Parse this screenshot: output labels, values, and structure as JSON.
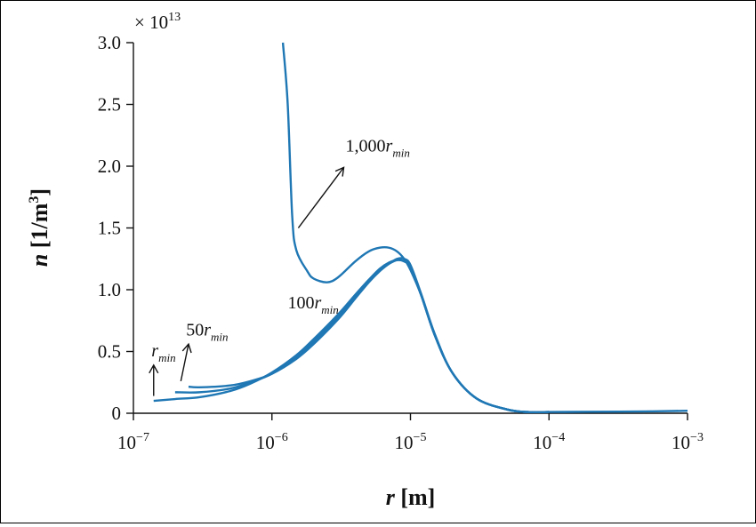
{
  "chart_data": {
    "type": "line",
    "title": "",
    "x_scale": "log",
    "xlim": [
      1e-07,
      0.001
    ],
    "ylim": [
      0,
      30000000000000.0
    ],
    "y_multiplier_label": "× 10",
    "y_multiplier_exp": "13",
    "x_ticks": [
      {
        "value": 1e-07,
        "base": "10",
        "exp": "−7"
      },
      {
        "value": 1e-06,
        "base": "10",
        "exp": "−6"
      },
      {
        "value": 1e-05,
        "base": "10",
        "exp": "−5"
      },
      {
        "value": 0.0001,
        "base": "10",
        "exp": "−4"
      },
      {
        "value": 0.001,
        "base": "10",
        "exp": "−3"
      }
    ],
    "y_ticks": [
      {
        "value": 0,
        "label": "0"
      },
      {
        "value": 5000000000000.0,
        "label": "0.5"
      },
      {
        "value": 10000000000000.0,
        "label": "1.0"
      },
      {
        "value": 15000000000000.0,
        "label": "1.5"
      },
      {
        "value": 20000000000000.0,
        "label": "2.0"
      },
      {
        "value": 25000000000000.0,
        "label": "2.5"
      },
      {
        "value": 30000000000000.0,
        "label": "3.0"
      }
    ],
    "xlabel": {
      "var": "r",
      "unit": " [m]"
    },
    "ylabel": {
      "var": "n",
      "unit_open": " [1/m",
      "unit_sup": "3",
      "unit_close": "]"
    },
    "line_color": "#1f77b4",
    "series": [
      {
        "x": [
          1.4e-07,
          2e-07,
          3e-07,
          5e-07,
          7e-07,
          1e-06,
          1.5e-06,
          2e-06,
          3e-06,
          4e-06,
          5e-06,
          6e-06,
          7e-06,
          8e-06,
          9e-06,
          1e-05,
          1.2e-05,
          1.5e-05,
          2e-05,
          3e-05,
          5e-05,
          7e-05,
          0.0001,
          0.0002,
          0.0005,
          0.001
        ],
        "y": [
          1000000000000.0,
          1150000000000.0,
          1300000000000.0,
          1800000000000.0,
          2400000000000.0,
          3300000000000.0,
          4700000000000.0,
          6000000000000.0,
          8000000000000.0,
          9600000000000.0,
          10800000000000.0,
          11700000000000.0,
          12200000000000.0,
          12400000000000.0,
          12300000000000.0,
          11800000000000.0,
          9500000000000.0,
          6300000000000.0,
          3300000000000.0,
          1200000000000.0,
          300000000000.0,
          100000000000.0,
          100000000000.0,
          120000000000.0,
          150000000000.0,
          200000000000.0
        ]
      },
      {
        "x": [
          2e-07,
          3e-07,
          5e-07,
          7e-07,
          1e-06,
          1.5e-06,
          2e-06,
          3e-06,
          4e-06,
          5e-06,
          6e-06,
          7e-06,
          8e-06,
          9e-06,
          1e-05,
          1.2e-05,
          1.5e-05,
          2e-05,
          3e-05,
          5e-05,
          7e-05,
          0.0001
        ],
        "y": [
          1700000000000.0,
          1700000000000.0,
          2000000000000.0,
          2500000000000.0,
          3200000000000.0,
          4500000000000.0,
          5800000000000.0,
          7800000000000.0,
          9500000000000.0,
          10700000000000.0,
          11600000000000.0,
          12100000000000.0,
          12400000000000.0,
          12300000000000.0,
          11800000000000.0,
          9500000000000.0,
          6300000000000.0,
          3300000000000.0,
          1200000000000.0,
          300000000000.0,
          100000000000.0,
          100000000000.0
        ]
      },
      {
        "x": [
          2.5e-07,
          3e-07,
          5e-07,
          7e-07,
          1e-06,
          1.5e-06,
          2e-06,
          3e-06,
          4e-06,
          5e-06,
          6e-06,
          7e-06,
          8e-06,
          9e-06,
          1e-05,
          1.2e-05,
          1.5e-05,
          2e-05,
          3e-05,
          5e-05,
          7e-05,
          0.0001
        ],
        "y": [
          2150000000000.0,
          2100000000000.0,
          2250000000000.0,
          2600000000000.0,
          3200000000000.0,
          4400000000000.0,
          5600000000000.0,
          7600000000000.0,
          9300000000000.0,
          10600000000000.0,
          11500000000000.0,
          12100000000000.0,
          12500000000000.0,
          12500000000000.0,
          12000000000000.0,
          9600000000000.0,
          6400000000000.0,
          3300000000000.0,
          1200000000000.0,
          300000000000.0,
          100000000000.0,
          100000000000.0
        ]
      },
      {
        "x": [
          1.2e-06,
          1.3e-06,
          1.4e-06,
          1.5e-06,
          1.8e-06,
          2e-06,
          2.5e-06,
          3e-06,
          4e-06,
          5e-06,
          6e-06,
          7e-06,
          8e-06,
          9e-06,
          1e-05,
          1.2e-05,
          1.5e-05,
          2e-05,
          3e-05,
          5e-05,
          7e-05,
          0.0001
        ],
        "y": [
          30000000000000.0,
          25000000000000.0,
          16000000000000.0,
          13200000000000.0,
          11500000000000.0,
          10900000000000.0,
          10600000000000.0,
          11000000000000.0,
          12300000000000.0,
          13100000000000.0,
          13400000000000.0,
          13400000000000.0,
          13100000000000.0,
          12500000000000.0,
          11600000000000.0,
          9500000000000.0,
          6300000000000.0,
          3300000000000.0,
          1200000000000.0,
          300000000000.0,
          100000000000.0,
          100000000000.0
        ]
      }
    ],
    "annotations": [
      {
        "base": "1,000",
        "var": "r",
        "sub": "min",
        "text_x": 3.4e-06,
        "text_y": 21200000000000.0,
        "arrow_from": [
          1.55e-06,
          15000000000000.0
        ],
        "arrow_to": [
          3.3e-06,
          19900000000000.0
        ]
      },
      {
        "base": "100",
        "var": "r",
        "sub": "min",
        "text_x": 1.3e-06,
        "text_y": 8500000000000.0
      },
      {
        "base": "50",
        "var": "r",
        "sub": "min",
        "text_x": 2.4e-07,
        "text_y": 6300000000000.0,
        "arrow_from": [
          2.2e-07,
          2600000000000.0
        ],
        "arrow_to": [
          2.5e-07,
          5600000000000.0
        ]
      },
      {
        "base": "",
        "var": "r",
        "sub": "min",
        "text_x": 1.35e-07,
        "text_y": 4600000000000.0,
        "arrow_from": [
          1.4e-07,
          1400000000000.0
        ],
        "arrow_to": [
          1.4e-07,
          3900000000000.0
        ]
      }
    ]
  }
}
